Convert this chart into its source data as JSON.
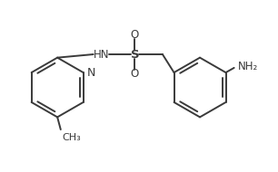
{
  "bg_color": "#ffffff",
  "line_color": "#3a3a3a",
  "text_color": "#3a3a3a",
  "line_width": 1.4,
  "font_size": 8.5,
  "fig_width": 3.06,
  "fig_height": 1.9,
  "dpi": 100,
  "xlim": [
    0,
    10
  ],
  "ylim": [
    0,
    6.2
  ]
}
